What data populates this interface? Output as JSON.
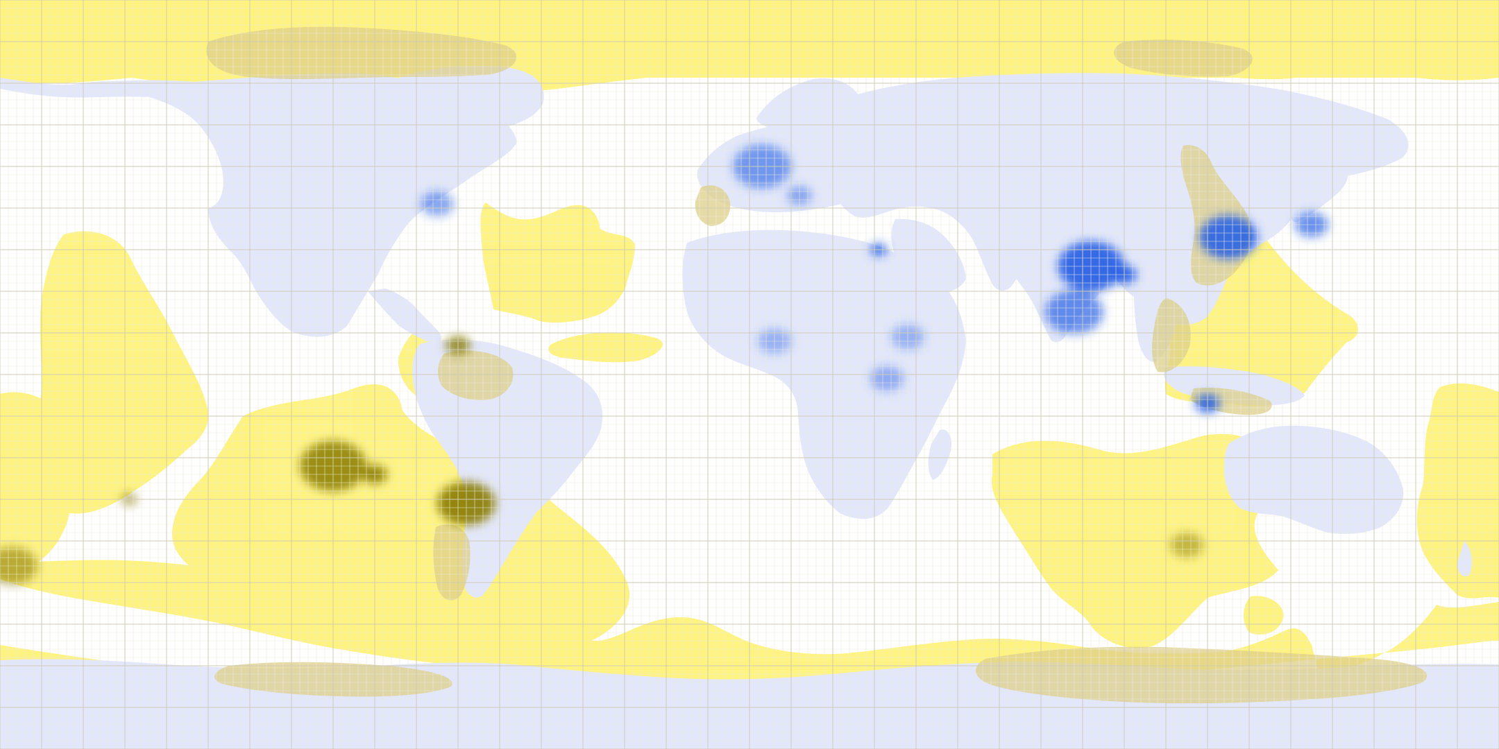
{
  "map": {
    "projection": "equirectangular",
    "lon_range": [
      -180,
      180
    ],
    "lat_range": [
      -90,
      90
    ],
    "grid": {
      "minor_step_deg": 2,
      "major_step_deg": 10,
      "visible": true
    },
    "colors": {
      "ocean": "#ffffff",
      "land": "#e2e7fb",
      "land_density": "#2a62e6",
      "antipode": "#fff37a",
      "antipode_density": "#8a7c00",
      "overlap": "#ddcf88",
      "grid_minor": "#eceadb",
      "grid_major": "#cfcbb4"
    },
    "layers": [
      {
        "id": "land",
        "description_color": "blue"
      },
      {
        "id": "antipodal-land",
        "description_color": "yellow"
      },
      {
        "id": "land-antipode-overlap",
        "description_color": "olive"
      }
    ],
    "hotspots": [
      {
        "name": "northeast-us",
        "lon": -75,
        "lat": 41,
        "level": 0.55,
        "r": 4
      },
      {
        "name": "western-europe",
        "lon": 3,
        "lat": 50,
        "level": 0.6,
        "r": 7
      },
      {
        "name": "italy",
        "lon": 12,
        "lat": 43,
        "level": 0.5,
        "r": 3
      },
      {
        "name": "nile-delta",
        "lon": 31,
        "lat": 30,
        "level": 0.9,
        "r": 2
      },
      {
        "name": "nigeria",
        "lon": 6,
        "lat": 8,
        "level": 0.4,
        "r": 4
      },
      {
        "name": "ethiopia",
        "lon": 38,
        "lat": 9,
        "level": 0.4,
        "r": 4
      },
      {
        "name": "east-africa",
        "lon": 33,
        "lat": -1,
        "level": 0.45,
        "r": 4
      },
      {
        "name": "ganges-plain",
        "lon": 82,
        "lat": 26,
        "level": 0.95,
        "r": 8
      },
      {
        "name": "india-south",
        "lon": 78,
        "lat": 15,
        "level": 0.7,
        "r": 7
      },
      {
        "name": "bangladesh",
        "lon": 90,
        "lat": 24,
        "level": 0.95,
        "r": 3
      },
      {
        "name": "eastern-china",
        "lon": 115,
        "lat": 33,
        "level": 0.9,
        "r": 7
      },
      {
        "name": "korea-japan",
        "lon": 135,
        "lat": 36,
        "level": 0.7,
        "r": 4
      },
      {
        "name": "java",
        "lon": 110,
        "lat": -7,
        "level": 0.9,
        "r": 3
      }
    ],
    "antipode_hotspots": [
      {
        "name": "antipode-china",
        "lon": -68,
        "lat": -31,
        "level": 0.9,
        "r": 7
      },
      {
        "name": "antipode-india",
        "lon": -100,
        "lat": -22,
        "level": 0.85,
        "r": 8
      },
      {
        "name": "antipode-bangladesh",
        "lon": -90,
        "lat": -24,
        "level": 0.9,
        "r": 3
      },
      {
        "name": "antipode-java",
        "lon": -70,
        "lat": 7,
        "level": 0.8,
        "r": 3
      },
      {
        "name": "antipode-europe",
        "lon": -177,
        "lat": -46,
        "level": 0.6,
        "r": 6
      },
      {
        "name": "antipode-nile",
        "lon": -149,
        "lat": -30,
        "level": 0.6,
        "r": 2
      },
      {
        "name": "antipode-us",
        "lon": 105,
        "lat": -41,
        "level": 0.5,
        "r": 4
      }
    ]
  }
}
